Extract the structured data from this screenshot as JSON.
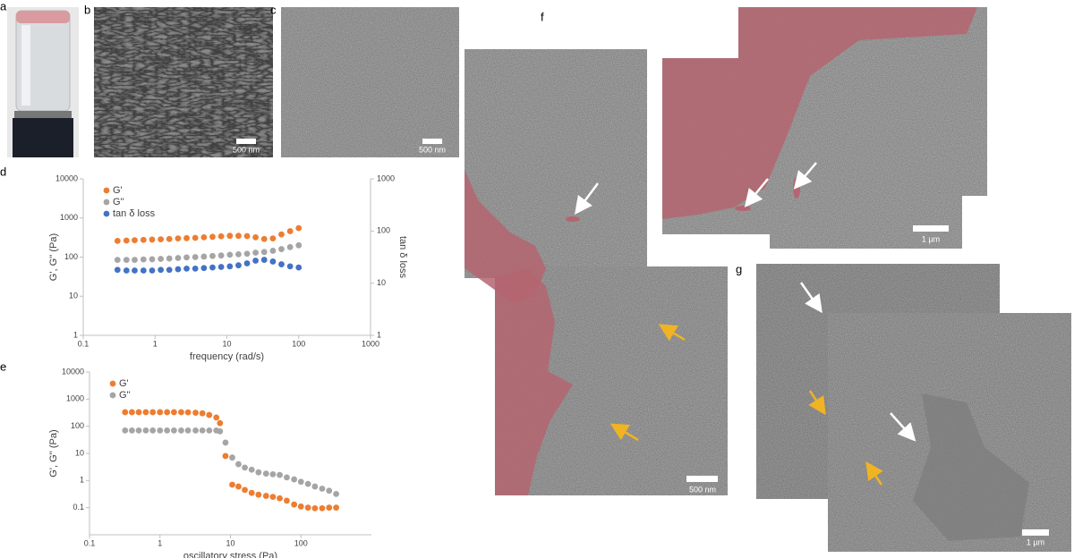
{
  "panel_labels": [
    "a",
    "b",
    "c",
    "f",
    "g"
  ],
  "scale_bars": [
    "500 nm",
    "500 nm",
    "500 nm",
    "1 µm",
    "1 µm"
  ],
  "chart_data": [
    {
      "type": "scatter",
      "label": "d",
      "xlabel": "frequency (rad/s)",
      "ylabel": "G', G'' (Pa)",
      "y2label": "tan δ loss",
      "log_x": true,
      "log_y": true,
      "log_y2": true,
      "grid": false,
      "legend": "upper left",
      "xlim": [
        0.1,
        1000
      ],
      "xticks": [
        0.1,
        1,
        10,
        100,
        1000
      ],
      "ylim": [
        1,
        10000
      ],
      "yticks": [
        1,
        10,
        100,
        1000,
        10000
      ],
      "y2lim": [
        1,
        1000
      ],
      "y2ticks": [
        1,
        10,
        100,
        1000
      ],
      "x": [
        0.3,
        0.4,
        0.52,
        0.69,
        0.91,
        1.2,
        1.58,
        2.09,
        2.75,
        3.63,
        4.79,
        6.31,
        8.32,
        11,
        14.5,
        19.1,
        25.1,
        33.1,
        43.7,
        57.5,
        75.9,
        100
      ],
      "series": [
        {
          "name": "G'",
          "color": "#ed7d31",
          "values": [
            260,
            265,
            270,
            275,
            280,
            285,
            290,
            300,
            305,
            310,
            320,
            330,
            340,
            350,
            350,
            345,
            320,
            290,
            300,
            380,
            460,
            550
          ]
        },
        {
          "name": "G''",
          "color": "#a5a5a5",
          "values": [
            85,
            85,
            85,
            87,
            88,
            90,
            92,
            95,
            98,
            100,
            103,
            107,
            110,
            115,
            118,
            122,
            130,
            135,
            145,
            160,
            180,
            200
          ]
        },
        {
          "name": "tan δ loss",
          "color": "#4472c4",
          "axis": "y2",
          "values": [
            18,
            17.5,
            17.5,
            17.5,
            17.5,
            18,
            18,
            18.5,
            19,
            19,
            19.5,
            20,
            20.5,
            21,
            22,
            24,
            27,
            28,
            26,
            23,
            21,
            20
          ]
        }
      ]
    },
    {
      "type": "scatter",
      "label": "e",
      "xlabel": "oscillatory stress (Pa)",
      "ylabel": "G', G'' (Pa)",
      "log_x": true,
      "log_y": true,
      "grid": false,
      "legend": "upper left",
      "xlim": [
        0.1,
        1000
      ],
      "xticks": [
        0.1,
        1,
        10,
        100
      ],
      "ylim": [
        0.01,
        10000
      ],
      "yticks": [
        0.1,
        1,
        10,
        100,
        1000,
        10000
      ],
      "x": [
        0.32,
        0.4,
        0.5,
        0.63,
        0.79,
        1,
        1.26,
        1.58,
        2,
        2.5,
        3.2,
        4,
        5,
        6.3,
        7.1,
        8.5,
        10.6,
        13,
        16,
        20,
        25,
        32,
        40,
        50,
        63,
        80,
        100,
        126,
        158,
        200,
        251,
        316
      ],
      "series": [
        {
          "name": "G'",
          "color": "#ed7d31",
          "values": [
            330,
            330,
            330,
            330,
            330,
            330,
            330,
            330,
            330,
            325,
            315,
            300,
            260,
            210,
            130,
            8,
            0.7,
            0.6,
            0.45,
            0.35,
            0.3,
            0.27,
            0.25,
            0.22,
            0.18,
            0.13,
            0.11,
            0.1,
            0.095,
            0.095,
            0.1,
            0.1
          ]
        },
        {
          "name": "G''",
          "color": "#a5a5a5",
          "values": [
            70,
            70,
            70,
            70,
            70,
            70,
            70,
            70,
            70,
            70,
            70,
            70,
            70,
            70,
            65,
            25,
            7,
            4,
            3,
            2.5,
            2,
            1.8,
            1.7,
            1.6,
            1.3,
            1.1,
            0.9,
            0.75,
            0.6,
            0.5,
            0.42,
            0.32
          ]
        }
      ]
    }
  ]
}
